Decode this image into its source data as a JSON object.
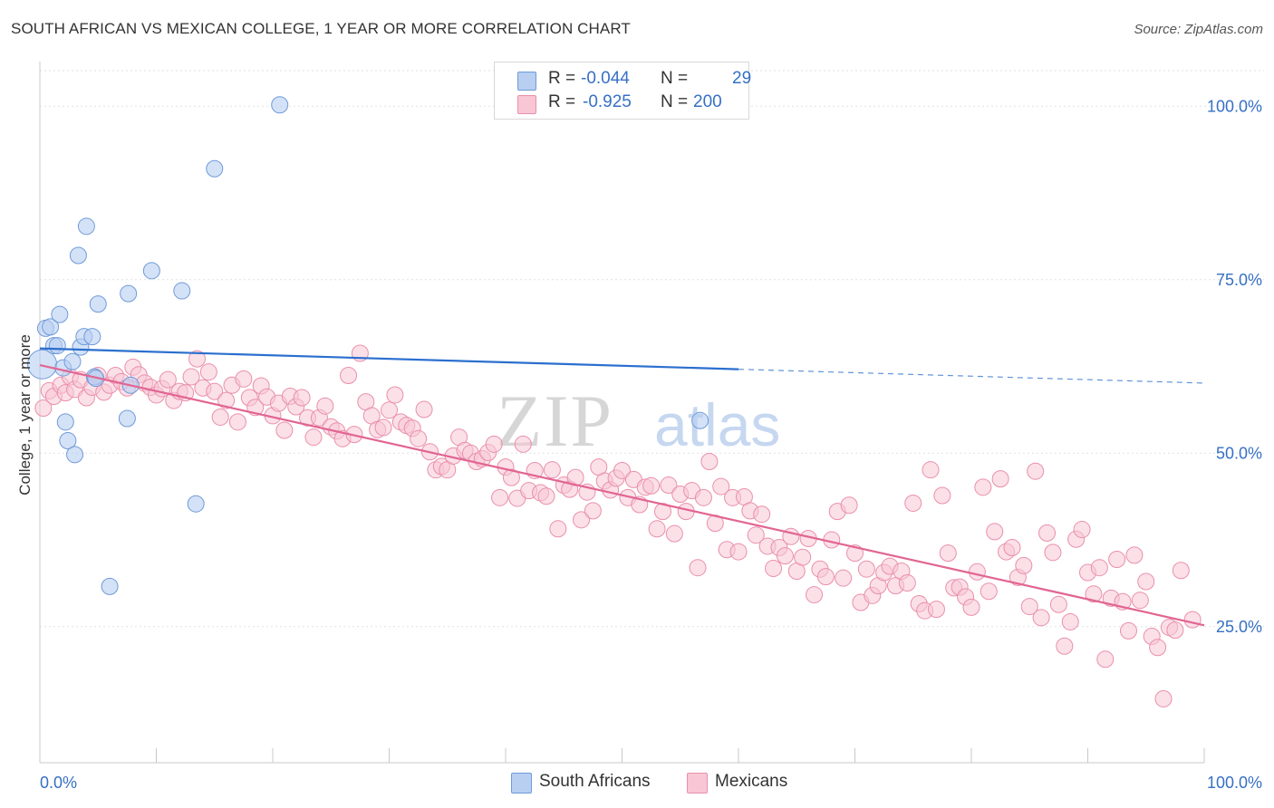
{
  "title": "SOUTH AFRICAN VS MEXICAN COLLEGE, 1 YEAR OR MORE CORRELATION CHART",
  "source": "Source: ZipAtlas.com",
  "watermark": {
    "zip": "ZIP",
    "atlas": "atlas"
  },
  "legend": {
    "rows": [
      {
        "r_label": "R =",
        "r_value": "-0.044",
        "n_label": "N =",
        "n_value": "29",
        "color": "#a9c4ee",
        "border": "#6f9ad8"
      },
      {
        "r_label": "R =",
        "r_value": "-0.925",
        "n_label": "N =",
        "n_value": "200",
        "color": "#f8bfd0",
        "border": "#ea8fab"
      }
    ]
  },
  "bottom_legend": [
    {
      "label": "South Africans",
      "color": "#a9c4ee",
      "border": "#6f9ad8"
    },
    {
      "label": "Mexicans",
      "color": "#f8bfd0",
      "border": "#ea8fab"
    }
  ],
  "chart_data": {
    "type": "scatter",
    "title": "SOUTH AFRICAN VS MEXICAN COLLEGE, 1 YEAR OR MORE CORRELATION CHART",
    "xlabel": "",
    "ylabel": "College, 1 year or more",
    "xlim": [
      0,
      100
    ],
    "ylim": [
      5,
      105
    ],
    "x_tick_labels": [
      "0.0%",
      "100.0%"
    ],
    "y_ticks": [
      25,
      50,
      75,
      100
    ],
    "y_tick_labels": [
      "25.0%",
      "50.0%",
      "75.0%",
      "100.0%"
    ],
    "grid": true,
    "series": [
      {
        "name": "South Africans",
        "color": "#6f9ad8",
        "fill": "#b8cff2",
        "line_color": "#2b6fce",
        "trend": {
          "x0": 0,
          "y0": 65.1,
          "x1": 60,
          "y1": 62.1,
          "dash_to_x": 100,
          "dash_to_y": 60.1
        },
        "points": [
          [
            0.2,
            62.8
          ],
          [
            0.5,
            68.0
          ],
          [
            0.9,
            68.2
          ],
          [
            1.2,
            65.5
          ],
          [
            1.5,
            65.5
          ],
          [
            1.7,
            70.0
          ],
          [
            2.0,
            62.3
          ],
          [
            2.2,
            54.5
          ],
          [
            2.4,
            51.8
          ],
          [
            2.8,
            63.2
          ],
          [
            3.0,
            49.8
          ],
          [
            3.3,
            78.5
          ],
          [
            3.5,
            65.3
          ],
          [
            3.8,
            66.8
          ],
          [
            4.0,
            82.7
          ],
          [
            4.5,
            66.8
          ],
          [
            4.7,
            61.0
          ],
          [
            4.8,
            60.8
          ],
          [
            5.0,
            71.5
          ],
          [
            6.0,
            30.8
          ],
          [
            7.5,
            55.0
          ],
          [
            7.6,
            73.0
          ],
          [
            7.8,
            59.8
          ],
          [
            9.6,
            76.3
          ],
          [
            12.2,
            73.4
          ],
          [
            13.4,
            42.7
          ],
          [
            15.0,
            91.0
          ],
          [
            20.6,
            100.2
          ],
          [
            56.7,
            54.7
          ]
        ]
      },
      {
        "name": "Mexicans",
        "color": "#ea8fab",
        "fill": "#f8c6d5",
        "line_color": "#e16592",
        "trend": {
          "x0": 0,
          "y0": 62.7,
          "x1": 100,
          "y1": 25.2
        },
        "points": [
          [
            0.3,
            56.5
          ],
          [
            0.8,
            59.0
          ],
          [
            1.2,
            58.2
          ],
          [
            1.8,
            59.8
          ],
          [
            2.2,
            58.7
          ],
          [
            2.6,
            61.0
          ],
          [
            3.0,
            59.2
          ],
          [
            3.5,
            60.6
          ],
          [
            4.0,
            58.0
          ],
          [
            4.5,
            59.5
          ],
          [
            5.0,
            61.2
          ],
          [
            5.5,
            58.8
          ],
          [
            6.0,
            59.8
          ],
          [
            6.5,
            61.2
          ],
          [
            7.0,
            60.3
          ],
          [
            7.5,
            59.4
          ],
          [
            8.0,
            62.4
          ],
          [
            8.5,
            61.3
          ],
          [
            9.0,
            60.1
          ],
          [
            9.5,
            59.5
          ],
          [
            10.0,
            58.4
          ],
          [
            10.5,
            59.3
          ],
          [
            11.0,
            60.6
          ],
          [
            11.5,
            57.6
          ],
          [
            12.0,
            58.9
          ],
          [
            12.5,
            58.7
          ],
          [
            13.0,
            61.0
          ],
          [
            13.5,
            63.6
          ],
          [
            14.0,
            59.4
          ],
          [
            14.5,
            61.7
          ],
          [
            15.0,
            58.9
          ],
          [
            15.5,
            55.2
          ],
          [
            16.0,
            57.6
          ],
          [
            16.5,
            59.8
          ],
          [
            17.0,
            54.5
          ],
          [
            17.5,
            60.7
          ],
          [
            18.0,
            58.0
          ],
          [
            18.5,
            56.6
          ],
          [
            19.0,
            59.7
          ],
          [
            19.5,
            58.1
          ],
          [
            20.0,
            55.4
          ],
          [
            20.5,
            57.2
          ],
          [
            21.0,
            53.3
          ],
          [
            21.5,
            58.2
          ],
          [
            22.0,
            56.7
          ],
          [
            22.5,
            58.0
          ],
          [
            23.0,
            55.1
          ],
          [
            23.5,
            52.3
          ],
          [
            24.0,
            55.1
          ],
          [
            24.5,
            56.8
          ],
          [
            25.0,
            53.8
          ],
          [
            25.5,
            53.2
          ],
          [
            26.0,
            52.1
          ],
          [
            26.5,
            61.2
          ],
          [
            27.0,
            52.7
          ],
          [
            27.5,
            64.4
          ],
          [
            28.0,
            57.4
          ],
          [
            28.5,
            55.4
          ],
          [
            29.0,
            53.4
          ],
          [
            29.5,
            53.7
          ],
          [
            30.0,
            56.2
          ],
          [
            30.5,
            58.4
          ],
          [
            31.0,
            54.5
          ],
          [
            31.5,
            54.0
          ],
          [
            32.0,
            53.6
          ],
          [
            32.5,
            52.1
          ],
          [
            33.0,
            56.3
          ],
          [
            33.5,
            50.2
          ],
          [
            34.0,
            47.6
          ],
          [
            34.5,
            48.1
          ],
          [
            35.0,
            47.6
          ],
          [
            35.5,
            49.6
          ],
          [
            36.0,
            52.3
          ],
          [
            36.5,
            50.4
          ],
          [
            37.0,
            50.0
          ],
          [
            37.5,
            48.8
          ],
          [
            38.0,
            49.2
          ],
          [
            38.5,
            50.1
          ],
          [
            39.0,
            51.3
          ],
          [
            39.5,
            43.6
          ],
          [
            40.0,
            48.0
          ],
          [
            40.5,
            46.5
          ],
          [
            41.0,
            43.5
          ],
          [
            41.5,
            51.3
          ],
          [
            42.0,
            44.6
          ],
          [
            42.5,
            47.5
          ],
          [
            43.0,
            44.3
          ],
          [
            43.5,
            43.8
          ],
          [
            44.0,
            47.6
          ],
          [
            44.5,
            39.1
          ],
          [
            45.0,
            45.4
          ],
          [
            45.5,
            44.8
          ],
          [
            46.0,
            46.5
          ],
          [
            46.5,
            40.4
          ],
          [
            47.0,
            44.4
          ],
          [
            47.5,
            41.7
          ],
          [
            48.0,
            48.0
          ],
          [
            48.5,
            46.0
          ],
          [
            49.0,
            44.7
          ],
          [
            49.5,
            46.4
          ],
          [
            50.0,
            47.5
          ],
          [
            50.5,
            43.6
          ],
          [
            51.0,
            46.2
          ],
          [
            51.5,
            42.6
          ],
          [
            52.0,
            45.1
          ],
          [
            52.5,
            45.3
          ],
          [
            53.0,
            39.1
          ],
          [
            53.5,
            41.6
          ],
          [
            54.0,
            45.4
          ],
          [
            54.5,
            38.4
          ],
          [
            55.0,
            44.1
          ],
          [
            55.5,
            41.6
          ],
          [
            56.0,
            44.6
          ],
          [
            56.5,
            33.5
          ],
          [
            57.0,
            43.6
          ],
          [
            57.5,
            48.8
          ],
          [
            58.0,
            39.9
          ],
          [
            58.5,
            45.2
          ],
          [
            59.0,
            36.1
          ],
          [
            59.5,
            43.6
          ],
          [
            60.0,
            35.8
          ],
          [
            60.5,
            43.7
          ],
          [
            61.0,
            41.7
          ],
          [
            61.5,
            38.2
          ],
          [
            62.0,
            41.2
          ],
          [
            62.5,
            36.6
          ],
          [
            63.0,
            33.4
          ],
          [
            63.5,
            36.4
          ],
          [
            64.0,
            35.2
          ],
          [
            64.5,
            38.0
          ],
          [
            65.0,
            33.0
          ],
          [
            65.5,
            35.0
          ],
          [
            66.0,
            37.7
          ],
          [
            66.5,
            29.6
          ],
          [
            67.0,
            33.3
          ],
          [
            67.5,
            32.2
          ],
          [
            68.0,
            37.5
          ],
          [
            68.5,
            41.6
          ],
          [
            69.0,
            32.0
          ],
          [
            69.5,
            42.5
          ],
          [
            70.0,
            35.6
          ],
          [
            70.5,
            28.5
          ],
          [
            71.0,
            33.3
          ],
          [
            71.5,
            29.5
          ],
          [
            72.0,
            30.9
          ],
          [
            72.5,
            32.8
          ],
          [
            73.0,
            33.7
          ],
          [
            73.5,
            30.9
          ],
          [
            74.0,
            33.0
          ],
          [
            74.5,
            31.3
          ],
          [
            75.0,
            42.8
          ],
          [
            75.5,
            28.3
          ],
          [
            76.0,
            27.3
          ],
          [
            76.5,
            47.6
          ],
          [
            77.0,
            27.5
          ],
          [
            77.5,
            43.9
          ],
          [
            78.0,
            35.6
          ],
          [
            78.5,
            30.6
          ],
          [
            79.0,
            30.7
          ],
          [
            79.5,
            29.3
          ],
          [
            80.0,
            27.8
          ],
          [
            80.5,
            32.9
          ],
          [
            81.0,
            45.1
          ],
          [
            81.5,
            30.1
          ],
          [
            82.0,
            38.7
          ],
          [
            82.5,
            46.3
          ],
          [
            83.0,
            35.8
          ],
          [
            83.5,
            36.4
          ],
          [
            84.0,
            32.1
          ],
          [
            84.5,
            33.8
          ],
          [
            85.0,
            27.9
          ],
          [
            85.5,
            47.4
          ],
          [
            86.0,
            26.3
          ],
          [
            86.5,
            38.5
          ],
          [
            87.0,
            35.7
          ],
          [
            87.5,
            28.2
          ],
          [
            88.0,
            22.2
          ],
          [
            88.5,
            25.7
          ],
          [
            89.0,
            37.6
          ],
          [
            89.5,
            39.0
          ],
          [
            90.0,
            32.8
          ],
          [
            90.5,
            29.7
          ],
          [
            91.0,
            33.5
          ],
          [
            91.5,
            20.3
          ],
          [
            92.0,
            29.1
          ],
          [
            92.5,
            34.7
          ],
          [
            93.0,
            28.6
          ],
          [
            93.5,
            24.4
          ],
          [
            94.0,
            35.3
          ],
          [
            94.5,
            28.8
          ],
          [
            95.0,
            31.5
          ],
          [
            95.5,
            23.6
          ],
          [
            96.0,
            22.0
          ],
          [
            96.5,
            14.6
          ],
          [
            97.0,
            24.9
          ],
          [
            97.5,
            24.5
          ],
          [
            98.0,
            33.1
          ],
          [
            99.0,
            26.0
          ]
        ]
      }
    ]
  }
}
